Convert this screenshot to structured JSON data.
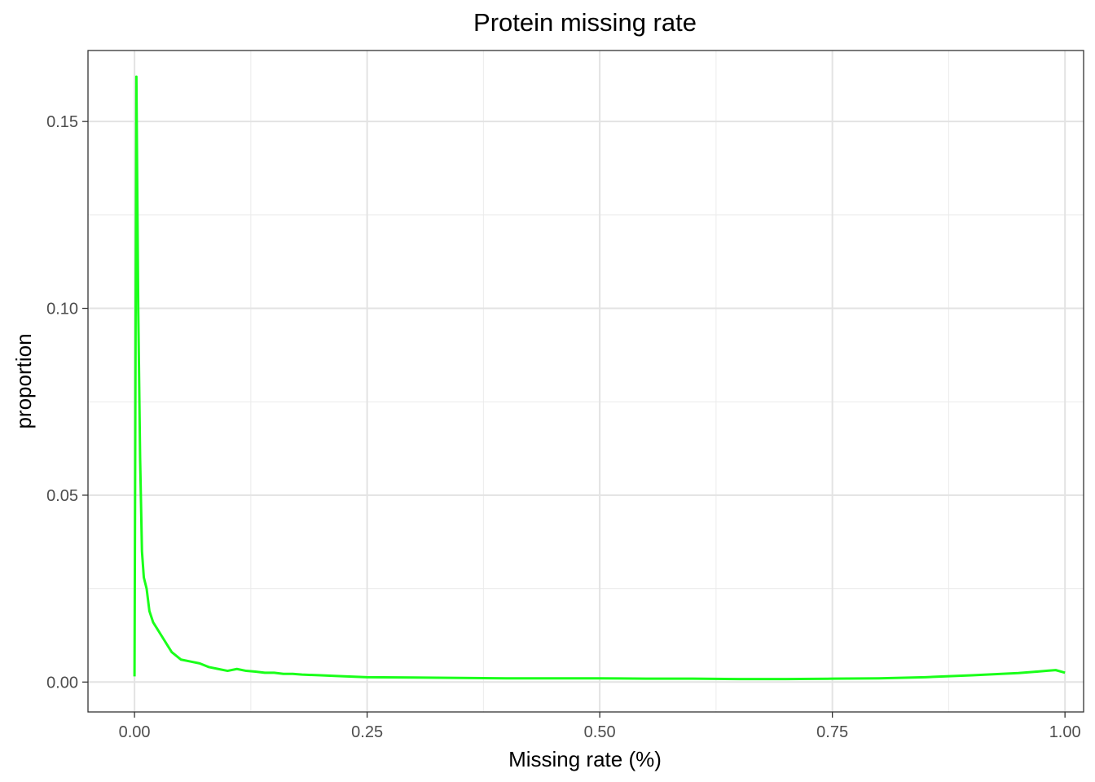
{
  "chart_data": {
    "type": "line",
    "title": "Protein missing rate",
    "xlabel": "Missing rate (%)",
    "ylabel": "proportion",
    "xlim": [
      -0.05,
      1.02
    ],
    "ylim": [
      -0.008,
      0.169
    ],
    "x_ticks": [
      0,
      0.25,
      0.5,
      0.75,
      1
    ],
    "x_tick_labels": [
      "0.00",
      "0.25",
      "0.50",
      "0.75",
      "1.00"
    ],
    "y_ticks": [
      0,
      0.05,
      0.1,
      0.15
    ],
    "y_tick_labels": [
      "0.00",
      "0.05",
      "0.10",
      "0.15"
    ],
    "grid": true,
    "legend": "none",
    "series": [
      {
        "color": "#1aff1a",
        "x": [
          0,
          0.002,
          0.004,
          0.006,
          0.008,
          0.01,
          0.013,
          0.016,
          0.02,
          0.025,
          0.03,
          0.035,
          0.04,
          0.045,
          0.05,
          0.06,
          0.07,
          0.08,
          0.09,
          0.1,
          0.11,
          0.12,
          0.13,
          0.14,
          0.15,
          0.16,
          0.17,
          0.18,
          0.2,
          0.22,
          0.25,
          0.3,
          0.35,
          0.4,
          0.45,
          0.5,
          0.55,
          0.6,
          0.65,
          0.7,
          0.75,
          0.8,
          0.85,
          0.9,
          0.95,
          0.97,
          0.98,
          0.99,
          1.0
        ],
        "y": [
          0.0015,
          0.162,
          0.1,
          0.06,
          0.035,
          0.028,
          0.025,
          0.019,
          0.016,
          0.014,
          0.012,
          0.01,
          0.008,
          0.007,
          0.006,
          0.0055,
          0.005,
          0.004,
          0.0035,
          0.003,
          0.0035,
          0.003,
          0.0028,
          0.0025,
          0.0025,
          0.0022,
          0.0022,
          0.002,
          0.0018,
          0.0016,
          0.0013,
          0.0012,
          0.0011,
          0.001,
          0.001,
          0.001,
          0.0009,
          0.0009,
          0.0008,
          0.0008,
          0.0009,
          0.001,
          0.0013,
          0.0018,
          0.0024,
          0.0028,
          0.003,
          0.0032,
          0.0025
        ]
      }
    ]
  }
}
